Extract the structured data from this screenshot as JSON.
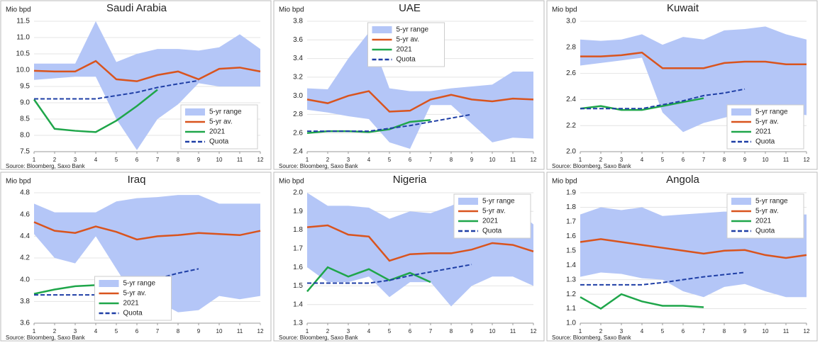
{
  "chart_data": [
    {
      "type": "line",
      "title": "Saudi Arabia",
      "y_label": "Mio bpd",
      "source": "Source: Bloomberg, Saxo Bank",
      "x": [
        1,
        2,
        3,
        4,
        5,
        6,
        7,
        8,
        9,
        10,
        11,
        12
      ],
      "xlim": [
        1,
        12
      ],
      "xticks": [
        1,
        2,
        3,
        4,
        5,
        6,
        7,
        8,
        9,
        10,
        11,
        12
      ],
      "ylim": [
        7.5,
        11.5
      ],
      "yticks": [
        7.5,
        {
          "value": 8,
          "label": "8.0"
        },
        8.5,
        {
          "value": 9,
          "label": "9.0"
        },
        9.5,
        {
          "value": 10,
          "label": "10.0"
        },
        10.5,
        {
          "value": 11,
          "label": "11.0"
        },
        11.5
      ],
      "legend": "lower right",
      "series": [
        {
          "name": "5-yr range",
          "color": "#b4c6f7",
          "low": [
            9.7,
            9.75,
            9.8,
            9.8,
            8.5,
            7.55,
            8.5,
            8.95,
            9.6,
            9.5,
            9.5,
            9.5
          ],
          "high": [
            10.2,
            10.2,
            10.2,
            11.5,
            10.25,
            10.5,
            10.65,
            10.65,
            10.6,
            10.7,
            11.1,
            10.65
          ]
        },
        {
          "name": "5-yr av.",
          "color": "#d9541e",
          "values": [
            9.98,
            9.96,
            9.96,
            10.28,
            9.72,
            9.66,
            9.85,
            9.96,
            9.72,
            10.04,
            10.08,
            9.96
          ]
        },
        {
          "name": "2021",
          "color": "#1fa64a",
          "values": [
            9.1,
            8.2,
            8.14,
            8.1,
            8.45,
            8.9,
            9.4,
            null,
            null,
            null,
            null,
            null
          ]
        },
        {
          "name": "Quota",
          "color": "#1f3fa6",
          "dashed": true,
          "values": [
            9.12,
            9.12,
            9.12,
            9.12,
            9.22,
            9.32,
            9.47,
            9.58,
            9.68,
            null,
            null,
            null
          ]
        }
      ]
    },
    {
      "type": "line",
      "title": "UAE",
      "y_label": "Mio bpd",
      "source": "Source: Bloomberg, Saxo Bank",
      "x": [
        1,
        2,
        3,
        4,
        5,
        6,
        7,
        8,
        9,
        10,
        11,
        12
      ],
      "xlim": [
        1,
        12
      ],
      "xticks": [
        1,
        2,
        3,
        4,
        5,
        6,
        7,
        8,
        9,
        10,
        11,
        12
      ],
      "ylim": [
        2.4,
        3.8
      ],
      "yticks": [
        2.4,
        2.6,
        2.8,
        {
          "value": 3,
          "label": "3.0"
        },
        3.2,
        3.4,
        3.6,
        3.8
      ],
      "legend": "upper center",
      "series": [
        {
          "name": "5-yr range",
          "color": "#b4c6f7",
          "low": [
            2.85,
            2.82,
            2.78,
            2.75,
            2.5,
            2.43,
            2.9,
            2.9,
            2.7,
            2.5,
            2.55,
            2.54
          ],
          "high": [
            3.08,
            3.07,
            3.4,
            3.68,
            3.08,
            3.05,
            3.05,
            3.08,
            3.1,
            3.12,
            3.26,
            3.26
          ]
        },
        {
          "name": "5-yr av.",
          "color": "#d9541e",
          "values": [
            2.96,
            2.92,
            3.0,
            3.05,
            2.83,
            2.84,
            2.96,
            3.01,
            2.96,
            2.94,
            2.97,
            2.96
          ]
        },
        {
          "name": "2021",
          "color": "#1fa64a",
          "values": [
            2.6,
            2.62,
            2.62,
            2.61,
            2.64,
            2.72,
            2.74,
            null,
            null,
            null,
            null,
            null
          ]
        },
        {
          "name": "Quota",
          "color": "#1f3fa6",
          "dashed": true,
          "values": [
            2.62,
            2.62,
            2.62,
            2.62,
            2.65,
            2.68,
            2.72,
            2.76,
            2.8,
            null,
            null,
            null
          ]
        }
      ]
    },
    {
      "type": "line",
      "title": "Kuwait",
      "y_label": "Mio bpd",
      "source": "Source: Bloomberg, Saxo Bank",
      "x": [
        1,
        2,
        3,
        4,
        5,
        6,
        7,
        8,
        9,
        10,
        11,
        12
      ],
      "xlim": [
        1,
        12
      ],
      "xticks": [
        1,
        2,
        3,
        4,
        5,
        6,
        7,
        8,
        9,
        10,
        11,
        12
      ],
      "ylim": [
        2.0,
        3.0
      ],
      "yticks": [
        {
          "value": 2,
          "label": "2.0"
        },
        2.2,
        2.4,
        2.6,
        2.8,
        {
          "value": 3,
          "label": "3.0"
        }
      ],
      "legend": "lower right",
      "series": [
        {
          "name": "5-yr range",
          "color": "#b4c6f7",
          "low": [
            2.66,
            2.68,
            2.7,
            2.72,
            2.3,
            2.15,
            2.22,
            2.26,
            2.3,
            2.3,
            2.3,
            2.28
          ],
          "high": [
            2.86,
            2.85,
            2.86,
            2.9,
            2.82,
            2.88,
            2.86,
            2.93,
            2.94,
            2.96,
            2.9,
            2.86
          ]
        },
        {
          "name": "5-yr av.",
          "color": "#d9541e",
          "values": [
            2.73,
            2.73,
            2.74,
            2.76,
            2.64,
            2.64,
            2.64,
            2.68,
            2.69,
            2.69,
            2.67,
            2.67
          ]
        },
        {
          "name": "2021",
          "color": "#1fa64a",
          "values": [
            2.33,
            2.35,
            2.32,
            2.32,
            2.35,
            2.38,
            2.41,
            null,
            null,
            null,
            null,
            null
          ]
        },
        {
          "name": "Quota",
          "color": "#1f3fa6",
          "dashed": true,
          "values": [
            2.33,
            2.33,
            2.33,
            2.33,
            2.36,
            2.39,
            2.43,
            2.45,
            2.48,
            null,
            null,
            null
          ]
        }
      ]
    },
    {
      "type": "line",
      "title": "Iraq",
      "y_label": "Mio bpd",
      "source": "Source: Bloomberg, Saxo Bank",
      "x": [
        1,
        2,
        3,
        4,
        5,
        6,
        7,
        8,
        9,
        10,
        11,
        12
      ],
      "xlim": [
        1,
        12
      ],
      "xticks": [
        1,
        2,
        3,
        4,
        5,
        6,
        7,
        8,
        9,
        10,
        11,
        12
      ],
      "ylim": [
        3.6,
        4.8
      ],
      "yticks": [
        3.6,
        3.8,
        {
          "value": 4,
          "label": "4.0"
        },
        4.2,
        4.4,
        4.6,
        4.8
      ],
      "legend": "lower center",
      "series": [
        {
          "name": "5-yr range",
          "color": "#b4c6f7",
          "low": [
            4.42,
            4.2,
            4.15,
            4.4,
            4.1,
            3.8,
            3.8,
            3.7,
            3.72,
            3.85,
            3.82,
            3.85
          ],
          "high": [
            4.7,
            4.62,
            4.62,
            4.62,
            4.72,
            4.75,
            4.76,
            4.78,
            4.78,
            4.7,
            4.7,
            4.7
          ]
        },
        {
          "name": "5-yr av.",
          "color": "#d9541e",
          "values": [
            4.53,
            4.45,
            4.43,
            4.49,
            4.44,
            4.37,
            4.4,
            4.41,
            4.43,
            4.42,
            4.41,
            4.45
          ]
        },
        {
          "name": "2021",
          "color": "#1fa64a",
          "values": [
            3.87,
            3.91,
            3.94,
            3.95,
            3.96,
            3.94,
            3.97,
            null,
            null,
            null,
            null,
            null
          ]
        },
        {
          "name": "Quota",
          "color": "#1f3fa6",
          "dashed": true,
          "values": [
            3.86,
            3.86,
            3.86,
            3.86,
            3.91,
            3.96,
            4.01,
            4.06,
            4.1,
            null,
            null,
            null
          ]
        }
      ]
    },
    {
      "type": "line",
      "title": "Nigeria",
      "y_label": "Mio bpd",
      "source": "Source: Bloomberg, Saxo Bank",
      "x": [
        1,
        2,
        3,
        4,
        5,
        6,
        7,
        8,
        9,
        10,
        11,
        12
      ],
      "xlim": [
        1,
        12
      ],
      "xticks": [
        1,
        2,
        3,
        4,
        5,
        6,
        7,
        8,
        9,
        10,
        11,
        12
      ],
      "ylim": [
        1.3,
        2.0
      ],
      "yticks": [
        1.3,
        1.4,
        1.5,
        1.6,
        1.7,
        1.8,
        1.9,
        {
          "value": 2,
          "label": "2.0"
        }
      ],
      "legend": "upper right",
      "series": [
        {
          "name": "5-yr range",
          "color": "#b4c6f7",
          "low": [
            1.6,
            1.52,
            1.52,
            1.55,
            1.44,
            1.52,
            1.52,
            1.39,
            1.5,
            1.55,
            1.55,
            1.5
          ],
          "high": [
            2.0,
            1.93,
            1.93,
            1.92,
            1.86,
            1.9,
            1.89,
            1.93,
            1.98,
            1.96,
            1.92,
            1.83
          ]
        },
        {
          "name": "5-yr av.",
          "color": "#d9541e",
          "values": [
            1.815,
            1.825,
            1.775,
            1.765,
            1.635,
            1.67,
            1.675,
            1.675,
            1.695,
            1.73,
            1.72,
            1.685
          ]
        },
        {
          "name": "2021",
          "color": "#1fa64a",
          "values": [
            1.47,
            1.6,
            1.55,
            1.59,
            1.53,
            1.57,
            1.52,
            null,
            null,
            null,
            null,
            null
          ]
        },
        {
          "name": "Quota",
          "color": "#1f3fa6",
          "dashed": true,
          "values": [
            1.515,
            1.515,
            1.515,
            1.515,
            1.53,
            1.555,
            1.575,
            1.595,
            1.615,
            null,
            null,
            null
          ]
        }
      ]
    },
    {
      "type": "line",
      "title": "Angola",
      "y_label": "Mio bpd",
      "source": "Source: Bloomberg, Saxo Bank",
      "x": [
        1,
        2,
        3,
        4,
        5,
        6,
        7,
        8,
        9,
        10,
        11,
        12
      ],
      "xlim": [
        1,
        12
      ],
      "xticks": [
        1,
        2,
        3,
        4,
        5,
        6,
        7,
        8,
        9,
        10,
        11,
        12
      ],
      "ylim": [
        1.0,
        1.9
      ],
      "yticks": [
        {
          "value": 1,
          "label": "1.0"
        },
        1.1,
        1.2,
        1.3,
        1.4,
        1.5,
        1.6,
        1.7,
        1.8,
        1.9
      ],
      "legend": "upper right",
      "series": [
        {
          "name": "5-yr range",
          "color": "#b4c6f7",
          "low": [
            1.32,
            1.35,
            1.34,
            1.31,
            1.3,
            1.22,
            1.18,
            1.25,
            1.27,
            1.22,
            1.18,
            1.18
          ],
          "high": [
            1.75,
            1.8,
            1.78,
            1.8,
            1.74,
            1.75,
            1.76,
            1.77,
            1.77,
            1.75,
            1.75,
            1.75
          ]
        },
        {
          "name": "5-yr av.",
          "color": "#d9541e",
          "values": [
            1.56,
            1.58,
            1.56,
            1.54,
            1.52,
            1.5,
            1.48,
            1.5,
            1.505,
            1.47,
            1.45,
            1.47
          ]
        },
        {
          "name": "2021",
          "color": "#1fa64a",
          "values": [
            1.18,
            1.1,
            1.2,
            1.15,
            1.12,
            1.12,
            1.11,
            null,
            null,
            null,
            null,
            null
          ]
        },
        {
          "name": "Quota",
          "color": "#1f3fa6",
          "dashed": true,
          "values": [
            1.265,
            1.265,
            1.265,
            1.265,
            1.28,
            1.3,
            1.32,
            1.335,
            1.35,
            null,
            null,
            null
          ]
        }
      ]
    }
  ]
}
